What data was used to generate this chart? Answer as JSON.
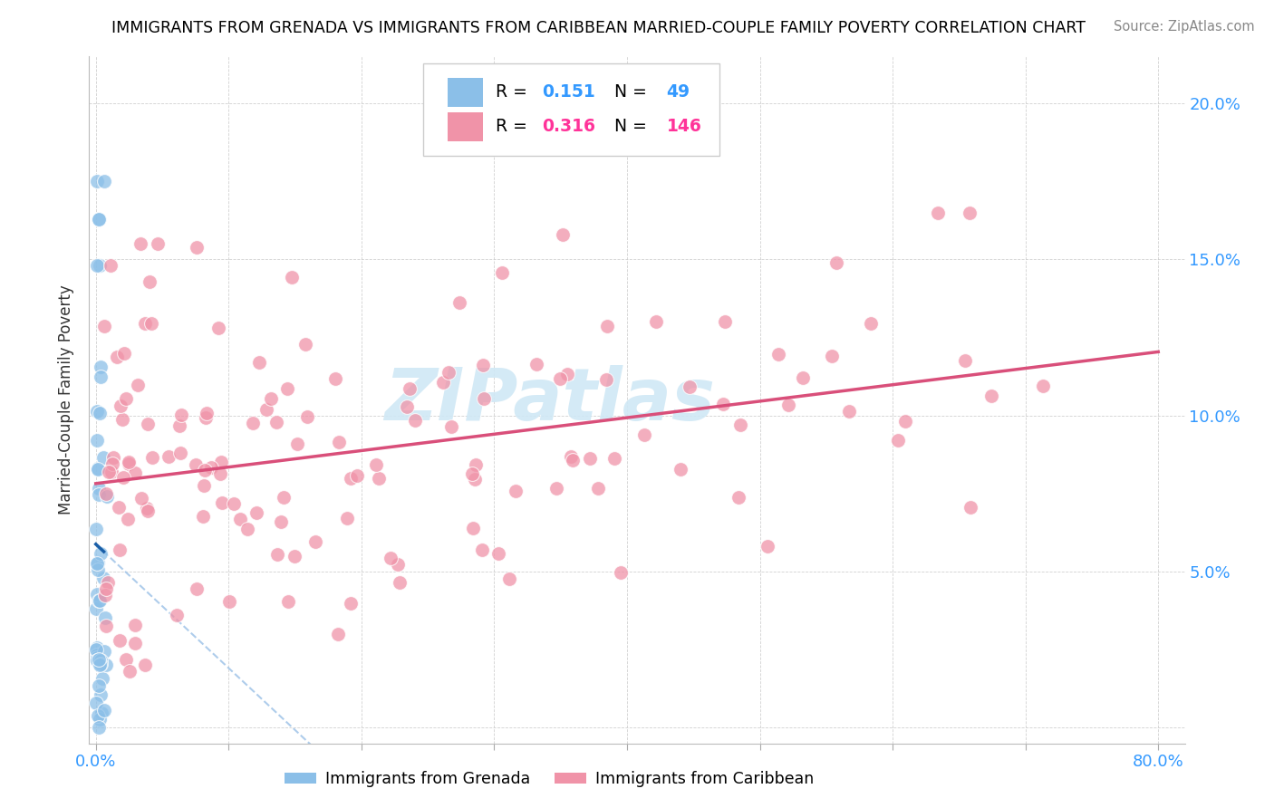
{
  "title": "IMMIGRANTS FROM GRENADA VS IMMIGRANTS FROM CARIBBEAN MARRIED-COUPLE FAMILY POVERTY CORRELATION CHART",
  "source": "Source: ZipAtlas.com",
  "ylabel": "Married-Couple Family Poverty",
  "xtick_values": [
    0.0,
    0.1,
    0.2,
    0.3,
    0.4,
    0.5,
    0.6,
    0.7,
    0.8
  ],
  "xtick_labels": [
    "0.0%",
    "",
    "",
    "",
    "",
    "",
    "",
    "",
    "80.0%"
  ],
  "ytick_values": [
    0.0,
    0.05,
    0.1,
    0.15,
    0.2
  ],
  "ytick_labels_right": [
    "",
    "5.0%",
    "10.0%",
    "15.0%",
    "20.0%"
  ],
  "xlim": [
    -0.005,
    0.82
  ],
  "ylim": [
    -0.005,
    0.215
  ],
  "color_blue": "#8bbfe8",
  "color_pink": "#f093a8",
  "color_line_blue": "#1a5fa8",
  "color_line_pink": "#d94f7a",
  "color_dashed": "#a0c4e8",
  "watermark_text": "ZIPatlas",
  "watermark_color": "#d0e8f5",
  "legend_label1": "Immigrants from Grenada",
  "legend_label2": "Immigrants from Caribbean",
  "r1": "0.151",
  "n1": "49",
  "r2": "0.316",
  "n2": "146",
  "accent_blue": "#3399ff",
  "accent_pink": "#ff3399"
}
